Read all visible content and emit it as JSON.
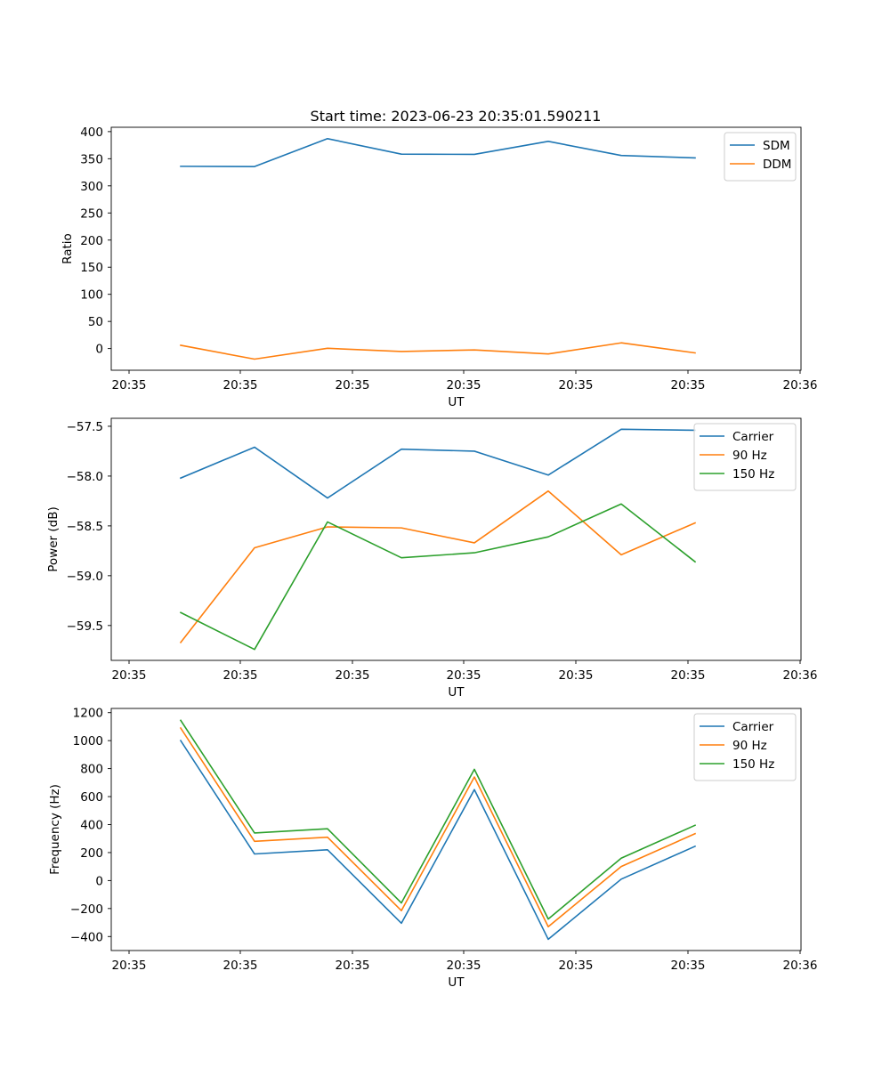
{
  "title": "Start time: 2023-06-23 20:35:01.590211",
  "chart_data": [
    {
      "type": "line",
      "ylabel": "Ratio",
      "xlabel": "UT",
      "x_tick_labels": [
        "20:35",
        "20:35",
        "20:35",
        "20:35",
        "20:35",
        "20:35",
        "20:36"
      ],
      "y_ticks": [
        0,
        50,
        100,
        150,
        200,
        250,
        300,
        350,
        400
      ],
      "ylim": [
        -40,
        408
      ],
      "legend_position": "upper right",
      "series": [
        {
          "name": "SDM",
          "color": "#1f77b4",
          "values": [
            336,
            335.5,
            387,
            358.5,
            358,
            382,
            356,
            351.5
          ]
        },
        {
          "name": "DDM",
          "color": "#ff7f0e",
          "values": [
            6,
            -19.5,
            0.5,
            -5.5,
            -2.5,
            -10,
            10.5,
            -8
          ]
        }
      ]
    },
    {
      "type": "line",
      "ylabel": "Power (dB)",
      "xlabel": "UT",
      "x_tick_labels": [
        "20:35",
        "20:35",
        "20:35",
        "20:35",
        "20:35",
        "20:35",
        "20:36"
      ],
      "y_ticks": [
        -59.5,
        -59.0,
        -58.5,
        -58.0,
        -57.5
      ],
      "y_tick_labels": [
        "−59.5",
        "−59.0",
        "−58.5",
        "−58.0",
        "−57.5"
      ],
      "ylim": [
        -59.85,
        -57.42
      ],
      "legend_position": "upper right",
      "series": [
        {
          "name": "Carrier",
          "color": "#1f77b4",
          "values": [
            -58.02,
            -57.71,
            -58.22,
            -57.73,
            -57.75,
            -57.99,
            -57.53,
            -57.54
          ]
        },
        {
          "name": "90 Hz",
          "color": "#ff7f0e",
          "values": [
            -59.67,
            -58.72,
            -58.51,
            -58.52,
            -58.67,
            -58.15,
            -58.79,
            -58.47
          ]
        },
        {
          "name": "150 Hz",
          "color": "#2ca02c",
          "values": [
            -59.37,
            -59.74,
            -58.46,
            -58.82,
            -58.77,
            -58.61,
            -58.28,
            -58.86
          ]
        }
      ]
    },
    {
      "type": "line",
      "ylabel": "Frequency (Hz)",
      "xlabel": "UT",
      "x_tick_labels": [
        "20:35",
        "20:35",
        "20:35",
        "20:35",
        "20:35",
        "20:35",
        "20:36"
      ],
      "y_ticks": [
        -400,
        -200,
        0,
        200,
        400,
        600,
        800,
        1000,
        1200
      ],
      "y_tick_labels": [
        "−400",
        "−200",
        "0",
        "200",
        "400",
        "600",
        "800",
        "1000",
        "1200"
      ],
      "ylim": [
        -500,
        1230
      ],
      "legend_position": "upper right",
      "series": [
        {
          "name": "Carrier",
          "color": "#1f77b4",
          "values": [
            1000,
            190,
            220,
            -305,
            650,
            -420,
            10,
            245
          ]
        },
        {
          "name": "90 Hz",
          "color": "#ff7f0e",
          "values": [
            1090,
            280,
            310,
            -215,
            740,
            -330,
            100,
            335
          ]
        },
        {
          "name": "150 Hz",
          "color": "#2ca02c",
          "values": [
            1145,
            340,
            370,
            -160,
            795,
            -275,
            160,
            395
          ]
        }
      ]
    }
  ]
}
